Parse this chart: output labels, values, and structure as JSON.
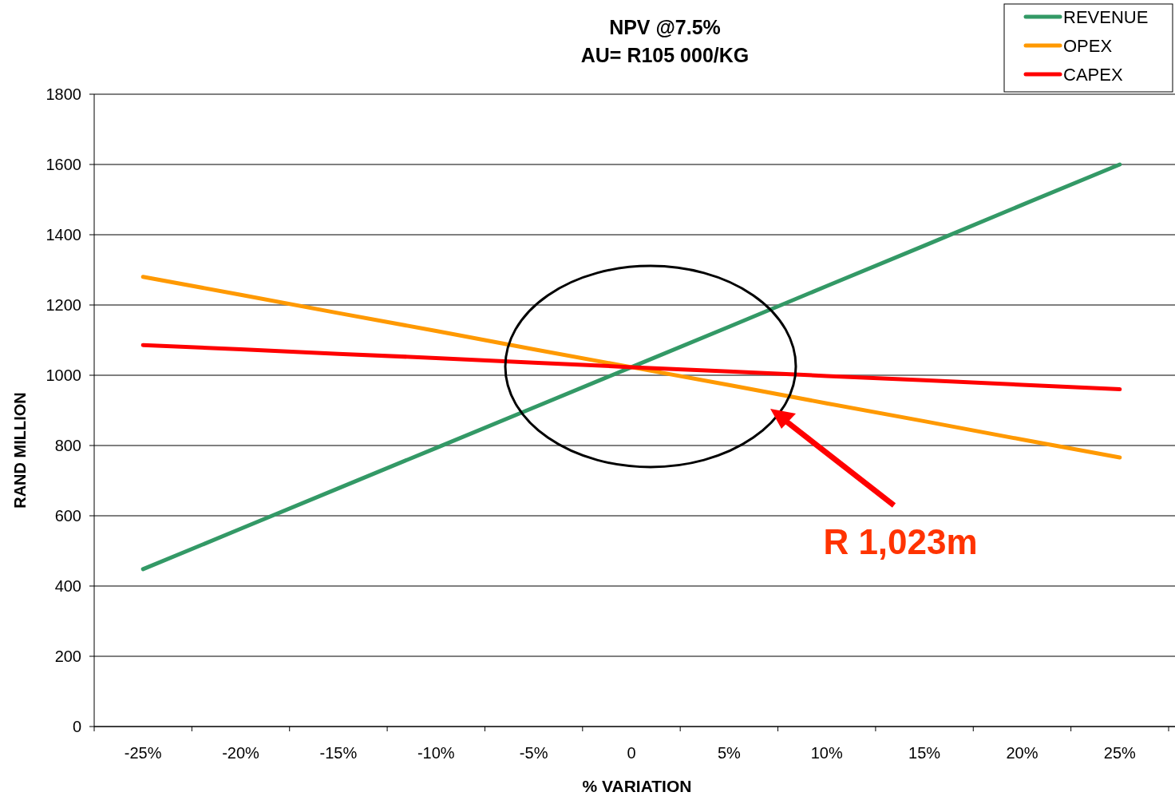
{
  "chart_data": {
    "type": "line",
    "title": "NPV @7.5%\nAU= R105 000/KG",
    "xlabel": "% VARIATION",
    "ylabel": "RAND MILLION",
    "categories": [
      "-25%",
      "-20%",
      "-15%",
      "-10%",
      "-5%",
      "0",
      "5%",
      "10%",
      "15%",
      "20%",
      "25%"
    ],
    "series": [
      {
        "name": "REVENUE",
        "color": "#339966",
        "values": [
          448,
          563,
          678,
          793,
          908,
          1023,
          1138,
          1254,
          1369,
          1485,
          1600
        ]
      },
      {
        "name": "OPEX",
        "color": "#ff9900",
        "values": [
          1280,
          1229,
          1177,
          1126,
          1074,
          1023,
          972,
          920,
          869,
          817,
          766
        ]
      },
      {
        "name": "CAPEX",
        "color": "#ff0000",
        "values": [
          1086,
          1074,
          1061,
          1049,
          1036,
          1023,
          1011,
          998,
          986,
          973,
          960
        ]
      }
    ],
    "ylim": [
      0,
      1800
    ],
    "yticks": [
      0,
      200,
      400,
      600,
      800,
      1000,
      1200,
      1400,
      1600,
      1800
    ],
    "grid": "y",
    "legend": "top right",
    "marker": "none",
    "line_style": "solid",
    "annotations": [
      "R 1,023m"
    ]
  }
}
